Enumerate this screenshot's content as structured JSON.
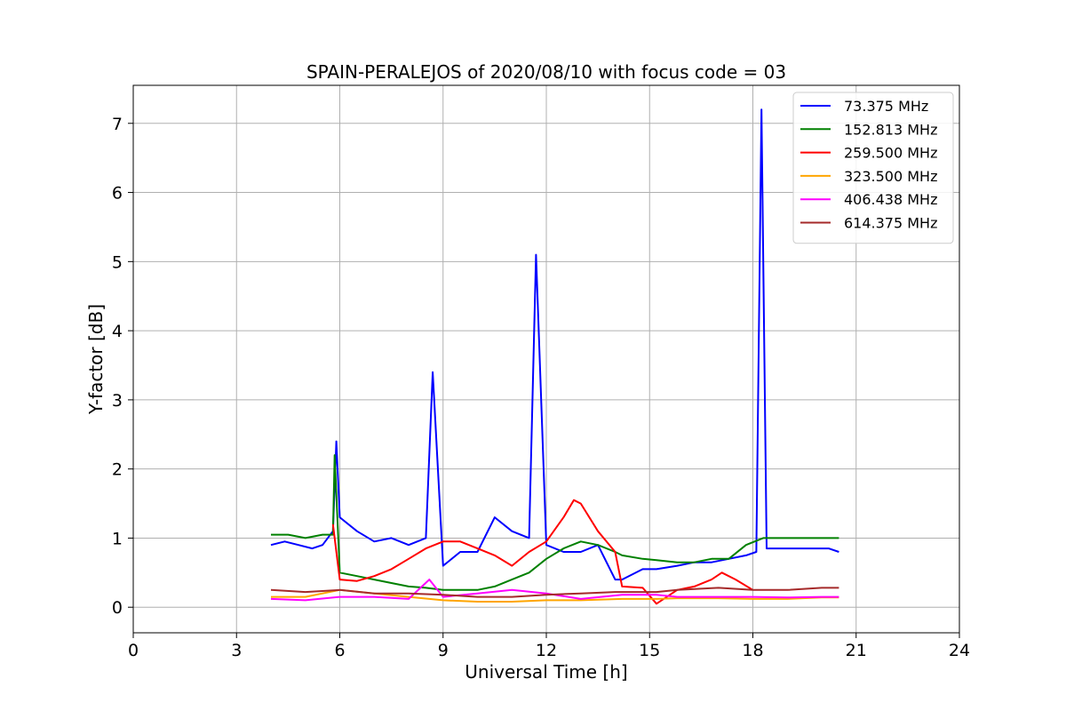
{
  "chart_data": {
    "type": "line",
    "title": "SPAIN-PERALEJOS of 2020/08/10 with focus code = 03",
    "xlabel": "Universal Time [h]",
    "ylabel": "Y-factor [dB]",
    "xlim": [
      0,
      24
    ],
    "ylim": [
      -0.37,
      7.55
    ],
    "xticks": [
      0,
      3,
      6,
      9,
      12,
      15,
      18,
      21,
      24
    ],
    "xtick_labels": [
      "0",
      "3",
      "6",
      "9",
      "12",
      "15",
      "18",
      "21",
      "24"
    ],
    "yticks": [
      0,
      1,
      2,
      3,
      4,
      5,
      6,
      7
    ],
    "ytick_labels": [
      "0",
      "1",
      "2",
      "3",
      "4",
      "5",
      "6",
      "7"
    ],
    "grid": true,
    "legend_position": "top-right",
    "series": [
      {
        "name": "  73.375 MHz",
        "color": "#0000ff",
        "x": [
          4.0,
          4.4,
          4.8,
          5.2,
          5.5,
          5.8,
          5.9,
          6.0,
          6.5,
          7.0,
          7.5,
          8.0,
          8.5,
          8.7,
          9.0,
          9.5,
          10.0,
          10.5,
          11.0,
          11.5,
          11.7,
          12.0,
          12.5,
          13.0,
          13.5,
          14.0,
          14.2,
          14.8,
          15.2,
          15.8,
          16.3,
          16.8,
          17.3,
          17.8,
          18.1,
          18.25,
          18.4,
          18.8,
          19.3,
          19.8,
          20.2,
          20.5
        ],
        "y": [
          0.9,
          0.95,
          0.9,
          0.85,
          0.9,
          1.1,
          2.4,
          1.3,
          1.1,
          0.95,
          1.0,
          0.9,
          1.0,
          3.4,
          0.6,
          0.8,
          0.8,
          1.3,
          1.1,
          1.0,
          5.1,
          0.9,
          0.8,
          0.8,
          0.9,
          0.4,
          0.4,
          0.55,
          0.55,
          0.6,
          0.65,
          0.65,
          0.7,
          0.75,
          0.8,
          7.2,
          0.85,
          0.85,
          0.85,
          0.85,
          0.85,
          0.8
        ]
      },
      {
        "name": "152.813 MHz",
        "color": "#008000",
        "x": [
          4.0,
          4.5,
          5.0,
          5.5,
          5.8,
          5.85,
          6.0,
          6.5,
          7.0,
          7.5,
          8.0,
          8.5,
          9.0,
          9.5,
          10.0,
          10.5,
          11.0,
          11.5,
          12.0,
          12.5,
          13.0,
          13.5,
          14.0,
          14.2,
          14.8,
          15.2,
          15.8,
          16.3,
          16.8,
          17.3,
          17.8,
          18.3,
          18.8,
          19.3,
          19.8,
          20.2,
          20.5
        ],
        "y": [
          1.05,
          1.05,
          1.0,
          1.05,
          1.05,
          2.2,
          0.5,
          0.45,
          0.4,
          0.35,
          0.3,
          0.28,
          0.25,
          0.25,
          0.25,
          0.3,
          0.4,
          0.5,
          0.7,
          0.85,
          0.95,
          0.9,
          0.8,
          0.75,
          0.7,
          0.68,
          0.65,
          0.65,
          0.7,
          0.7,
          0.9,
          1.0,
          1.0,
          1.0,
          1.0,
          1.0,
          1.0
        ]
      },
      {
        "name": "259.500 MHz",
        "color": "#ff0000",
        "x": [
          5.8,
          6.0,
          6.5,
          7.0,
          7.5,
          8.0,
          8.5,
          9.0,
          9.5,
          10.0,
          10.5,
          11.0,
          11.5,
          12.0,
          12.5,
          12.8,
          13.0,
          13.5,
          14.0,
          14.2,
          14.8,
          15.2,
          15.8,
          16.3,
          16.8,
          17.1,
          17.5,
          18.0
        ],
        "y": [
          1.2,
          0.4,
          0.38,
          0.45,
          0.55,
          0.7,
          0.85,
          0.95,
          0.95,
          0.85,
          0.75,
          0.6,
          0.8,
          0.95,
          1.3,
          1.55,
          1.5,
          1.1,
          0.8,
          0.3,
          0.28,
          0.05,
          0.25,
          0.3,
          0.4,
          0.5,
          0.4,
          0.25
        ]
      },
      {
        "name": "323.500 MHz",
        "color": "#ffa500",
        "x": [
          4.0,
          5.0,
          6.0,
          7.0,
          8.0,
          9.0,
          10.0,
          11.0,
          12.0,
          13.0,
          14.2,
          14.8,
          15.2,
          15.8,
          17.0,
          18.0,
          19.0,
          20.0,
          20.5
        ],
        "y": [
          0.15,
          0.15,
          0.25,
          0.2,
          0.15,
          0.1,
          0.08,
          0.08,
          0.1,
          0.1,
          0.12,
          0.12,
          0.12,
          0.13,
          0.13,
          0.12,
          0.12,
          0.14,
          0.14
        ]
      },
      {
        "name": "406.438 MHz",
        "color": "#ff00ff",
        "x": [
          4.0,
          5.0,
          6.0,
          7.0,
          8.0,
          8.6,
          9.0,
          10.0,
          11.0,
          12.0,
          13.0,
          14.2,
          14.8,
          15.2,
          15.8,
          17.0,
          18.0,
          19.0,
          20.0,
          20.5
        ],
        "y": [
          0.12,
          0.1,
          0.15,
          0.15,
          0.12,
          0.4,
          0.15,
          0.2,
          0.25,
          0.2,
          0.12,
          0.18,
          0.18,
          0.18,
          0.15,
          0.15,
          0.15,
          0.14,
          0.15,
          0.15
        ]
      },
      {
        "name": "614.375 MHz",
        "color": "#a52a2a",
        "x": [
          4.0,
          5.0,
          6.0,
          7.0,
          8.0,
          9.0,
          10.0,
          11.0,
          12.0,
          13.0,
          14.0,
          14.2,
          14.8,
          15.2,
          15.8,
          17.0,
          18.0,
          19.0,
          20.0,
          20.5
        ],
        "y": [
          0.25,
          0.22,
          0.25,
          0.2,
          0.2,
          0.18,
          0.15,
          0.15,
          0.18,
          0.2,
          0.22,
          0.22,
          0.22,
          0.22,
          0.25,
          0.28,
          0.25,
          0.25,
          0.28,
          0.28
        ]
      }
    ]
  }
}
